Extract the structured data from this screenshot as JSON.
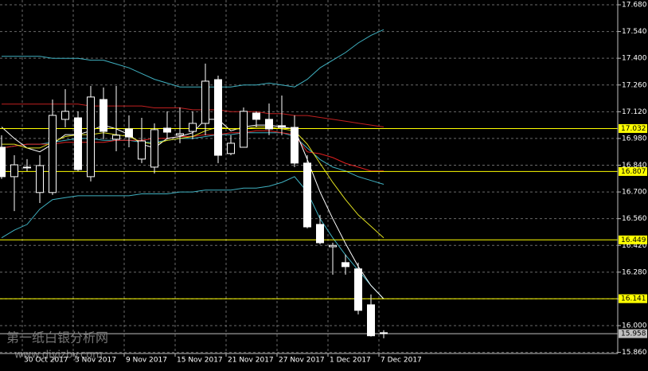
{
  "chart_data": {
    "type": "candlestick",
    "categories": [
      null,
      null,
      "30 Oct 2017",
      null,
      null,
      null,
      "3 Nov 2017",
      null,
      null,
      null,
      "9 Nov 2017",
      null,
      null,
      null,
      "15 Nov 2017",
      null,
      null,
      null,
      "21 Nov 2017",
      null,
      null,
      null,
      "27 Nov 2017",
      null,
      null,
      null,
      "1 Dec 2017",
      null,
      null,
      null,
      "7 Dec 2017"
    ],
    "open": [
      16.934,
      16.78,
      16.83,
      16.697,
      16.697,
      17.08,
      17.088,
      16.78,
      17.184,
      16.976,
      17.03,
      16.872,
      16.83,
      17.034,
      16.997,
      17.017,
      17.059,
      17.288,
      16.901,
      16.934,
      17.113,
      17.08,
      17.047,
      17.038,
      16.851,
      16.53,
      16.413,
      16.33,
      16.297,
      16.109,
      15.963
    ],
    "high": [
      16.997,
      16.892,
      16.872,
      16.892,
      17.184,
      17.238,
      17.122,
      17.255,
      17.247,
      17.255,
      17.101,
      17.088,
      17.059,
      17.122,
      17.142,
      17.122,
      17.372,
      17.309,
      16.997,
      17.142,
      17.122,
      17.163,
      17.205,
      17.101,
      16.892,
      16.58,
      16.434,
      16.372,
      16.33,
      16.163,
      15.976
    ],
    "low": [
      16.768,
      16.6,
      16.809,
      16.642,
      16.684,
      17.038,
      16.809,
      16.755,
      16.976,
      16.913,
      16.934,
      16.851,
      16.797,
      16.976,
      16.955,
      16.976,
      16.997,
      16.851,
      16.892,
      16.934,
      17.038,
      16.997,
      16.997,
      16.83,
      16.509,
      16.426,
      16.267,
      16.267,
      16.059,
      15.943,
      15.934
    ],
    "close": [
      16.78,
      16.842,
      16.83,
      16.838,
      17.101,
      17.122,
      16.817,
      17.197,
      17.017,
      16.997,
      16.988,
      16.967,
      17.026,
      17.013,
      17.005,
      17.059,
      17.28,
      16.892,
      16.955,
      17.122,
      17.08,
      17.03,
      17.038,
      16.851,
      16.517,
      16.434,
      16.42,
      16.309,
      16.08,
      15.947,
      15.958
    ],
    "bull_color": "#000000",
    "bear_color": "#ffffff",
    "candle_stroke": "#ffffff",
    "indicators": [
      {
        "color": "#3fb0c0",
        "values": [
          17.41,
          17.41,
          17.41,
          17.41,
          17.4,
          17.4,
          17.4,
          17.39,
          17.39,
          17.37,
          17.35,
          17.32,
          17.29,
          17.27,
          17.25,
          17.25,
          17.25,
          17.25,
          17.25,
          17.26,
          17.26,
          17.27,
          17.26,
          17.25,
          17.29,
          17.35,
          17.39,
          17.43,
          17.48,
          17.52,
          17.55
        ]
      },
      {
        "color": "#3fb0c0",
        "values": [
          16.93,
          16.94,
          16.95,
          16.95,
          16.96,
          16.97,
          16.98,
          16.98,
          16.97,
          16.97,
          16.97,
          16.96,
          16.96,
          16.97,
          16.98,
          16.98,
          16.99,
          17.0,
          17.0,
          17.01,
          17.01,
          17.01,
          17.01,
          16.99,
          16.93,
          16.87,
          16.83,
          16.81,
          16.78,
          16.76,
          16.74
        ]
      },
      {
        "color": "#3fb0c0",
        "values": [
          16.46,
          16.5,
          16.53,
          16.61,
          16.66,
          16.67,
          16.68,
          16.68,
          16.68,
          16.68,
          16.68,
          16.69,
          16.69,
          16.69,
          16.7,
          16.7,
          16.71,
          16.71,
          16.71,
          16.72,
          16.72,
          16.73,
          16.75,
          16.78,
          16.7,
          16.56,
          16.46,
          16.37,
          16.29,
          16.21,
          16.14
        ]
      },
      {
        "color": "#c02020",
        "values": [
          17.16,
          17.16,
          17.16,
          17.16,
          17.16,
          17.16,
          17.16,
          17.15,
          17.15,
          17.15,
          17.15,
          17.15,
          17.14,
          17.14,
          17.14,
          17.13,
          17.13,
          17.13,
          17.12,
          17.12,
          17.12,
          17.11,
          17.11,
          17.1,
          17.1,
          17.09,
          17.08,
          17.07,
          17.06,
          17.05,
          17.04
        ]
      },
      {
        "color": "#e02020",
        "values": [
          16.93,
          16.94,
          16.95,
          16.95,
          16.95,
          16.96,
          16.96,
          16.96,
          16.96,
          16.97,
          16.97,
          16.97,
          16.98,
          16.98,
          16.99,
          16.99,
          17.0,
          17.0,
          17.01,
          17.01,
          17.02,
          17.02,
          17.01,
          17.0,
          16.91,
          16.9,
          16.88,
          16.85,
          16.83,
          16.81,
          16.81
        ]
      },
      {
        "color": "#ffffff",
        "values": [
          17.04,
          16.98,
          16.93,
          16.91,
          16.95,
          17.0,
          17.0,
          17.02,
          17.05,
          17.03,
          17.0,
          16.95,
          16.93,
          16.98,
          16.99,
          17.01,
          17.08,
          17.08,
          17.02,
          17.04,
          17.05,
          17.05,
          17.04,
          17.03,
          16.87,
          16.7,
          16.56,
          16.43,
          16.31,
          16.21,
          16.14
        ]
      },
      {
        "color": "#e0e020",
        "values": [
          16.95,
          16.95,
          16.93,
          16.93,
          16.96,
          16.99,
          17.0,
          17.0,
          17.01,
          17.0,
          16.99,
          16.96,
          16.95,
          16.97,
          16.98,
          16.99,
          17.02,
          17.04,
          17.03,
          17.03,
          17.04,
          17.04,
          17.03,
          17.02,
          16.95,
          16.85,
          16.75,
          16.66,
          16.58,
          16.52,
          16.46
        ]
      }
    ],
    "levels": [
      {
        "value": 17.032,
        "color": "#ffff00"
      },
      {
        "value": 16.807,
        "color": "#ffff00"
      },
      {
        "value": 16.449,
        "color": "#ffff00"
      },
      {
        "value": 16.141,
        "color": "#ffff00"
      },
      {
        "value": 15.958,
        "color": "#c0c0c0"
      }
    ],
    "ylim": [
      15.85,
      17.705
    ],
    "yticks": [
      {
        "value": 17.68,
        "label": "17.680"
      },
      {
        "value": 17.54,
        "label": "17.540"
      },
      {
        "value": 17.4,
        "label": "17.400"
      },
      {
        "value": 17.26,
        "label": "17.260"
      },
      {
        "value": 17.12,
        "label": "17.120"
      },
      {
        "value": 16.98,
        "label": "16.980"
      },
      {
        "value": 16.84,
        "label": "16.840"
      },
      {
        "value": 16.7,
        "label": "16.700"
      },
      {
        "value": 16.56,
        "label": "16.560"
      },
      {
        "value": 16.42,
        "label": "16.420"
      },
      {
        "value": 16.28,
        "label": "16.280"
      },
      {
        "value": 16.14,
        "label": "16.140"
      },
      {
        "value": 16.0,
        "label": "16.000"
      },
      {
        "value": 15.86,
        "label": "15.860"
      }
    ],
    "grid": true
  },
  "watermark": {
    "title": "第一纸白银分析网",
    "url": "www.diyizby.com"
  }
}
